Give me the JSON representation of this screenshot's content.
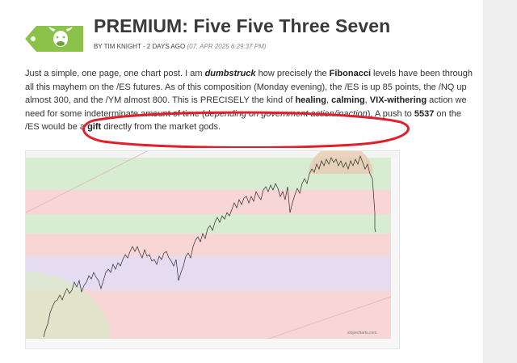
{
  "post": {
    "title": "PREMIUM: Five Five Three Seven",
    "author_line": "BY TIM KNIGHT - 2 DAYS AGO",
    "date_line": "(07, APR 2025 6:29:37 PM)",
    "p1": "Just a simple, one page, one chart post. I am ",
    "p2": "dumbstruck",
    "p3": " how precisely the ",
    "p4": "Fibonacci",
    "p5": " levels have been through all this mayhem on the /ES futures. As of this composition (Monday evening), the /ES is up 85 points, the /NQ up almost 300, and the /YM almost 800. This is PRECISELY the kind of ",
    "p6": "healing",
    "p7": ", ",
    "p8": "calming",
    "p9": ", ",
    "p10": "VIX-withering",
    "p11": " action we need for some indeterminate amount of time (",
    "p12": "depending on government action/inaction",
    "p13": "). A push to ",
    "p14": "5537",
    "p15": " on the /ES would be a ",
    "p16": "gift",
    "p17": " directly from the market gods."
  },
  "chart": {
    "watermark": "slopecharts.com",
    "band_colors": [
      "#d7ecd1",
      "#f9d6d6",
      "#e6dcf2",
      "#f9d6d6"
    ]
  },
  "colors": {
    "tag_green": "#8bc34a",
    "annotation_red": "#e0202a",
    "title_text": "#3a3a3a"
  }
}
